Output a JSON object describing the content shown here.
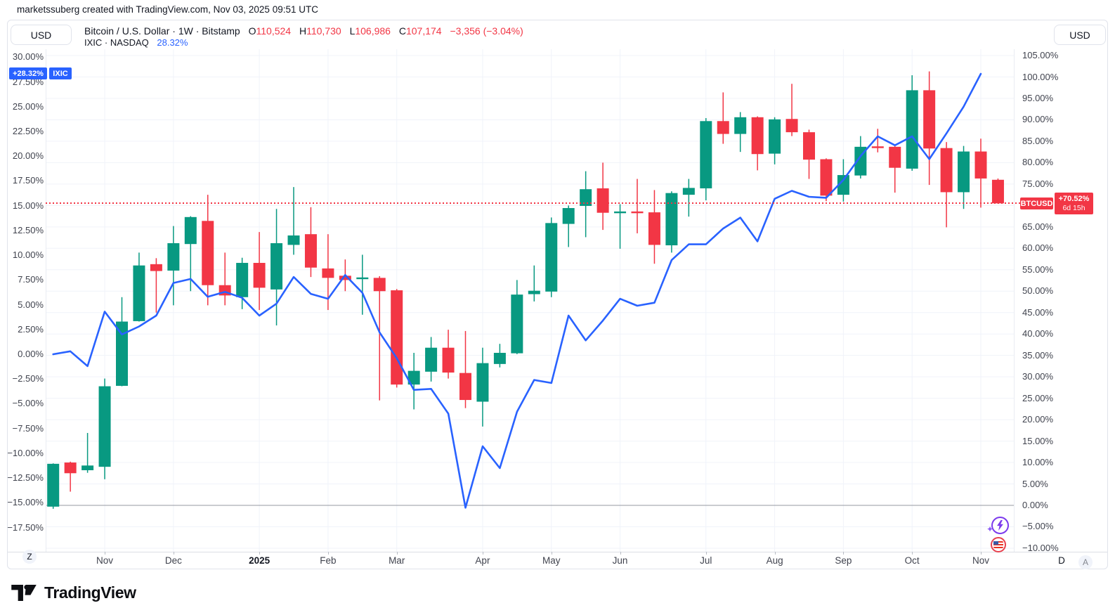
{
  "attribution": "marketssuberg created with TradingView.com, Nov 03, 2025 09:51 UTC",
  "legend": {
    "currency_button": "USD",
    "symbol_title": "Bitcoin / U.S. Dollar · 1W · Bitstamp",
    "o_label": "O",
    "o_value": "110,524",
    "h_label": "H",
    "h_value": "110,730",
    "l_label": "L",
    "l_value": "106,986",
    "c_label": "C",
    "c_value": "107,174",
    "change": "−3,356 (−3.04%)",
    "compare_symbol": "IXIC · NASDAQ",
    "compare_value": "28.32%"
  },
  "right_currency_button": "USD",
  "badges": {
    "ixic_value": "+28.32%",
    "ixic_name": "IXIC",
    "btc_name": "BTCUSD",
    "btc_value": "+70.52%",
    "btc_countdown": "6d 15h"
  },
  "axes": {
    "left_ticks": [
      {
        "label": "30.00%",
        "value": 30
      },
      {
        "label": "27.50%",
        "value": 27.5
      },
      {
        "label": "25.00%",
        "value": 25
      },
      {
        "label": "22.50%",
        "value": 22.5
      },
      {
        "label": "20.00%",
        "value": 20
      },
      {
        "label": "17.50%",
        "value": 17.5
      },
      {
        "label": "15.00%",
        "value": 15
      },
      {
        "label": "12.50%",
        "value": 12.5
      },
      {
        "label": "10.00%",
        "value": 10
      },
      {
        "label": "7.50%",
        "value": 7.5
      },
      {
        "label": "5.00%",
        "value": 5
      },
      {
        "label": "2.50%",
        "value": 2.5
      },
      {
        "label": "0.00%",
        "value": 0
      },
      {
        "label": "−2.50%",
        "value": -2.5
      },
      {
        "label": "−5.00%",
        "value": -5
      },
      {
        "label": "−7.50%",
        "value": -7.5
      },
      {
        "label": "−10.00%",
        "value": -10
      },
      {
        "label": "−12.50%",
        "value": -12.5
      },
      {
        "label": "−15.00%",
        "value": -15
      },
      {
        "label": "−17.50%",
        "value": -17.5
      }
    ],
    "right_ticks": [
      {
        "label": "105.00%",
        "value": 105
      },
      {
        "label": "100.00%",
        "value": 100
      },
      {
        "label": "95.00%",
        "value": 95
      },
      {
        "label": "90.00%",
        "value": 90
      },
      {
        "label": "85.00%",
        "value": 85
      },
      {
        "label": "80.00%",
        "value": 80
      },
      {
        "label": "75.00%",
        "value": 75
      },
      {
        "label": "65.00%",
        "value": 65
      },
      {
        "label": "60.00%",
        "value": 60
      },
      {
        "label": "55.00%",
        "value": 55
      },
      {
        "label": "50.00%",
        "value": 50
      },
      {
        "label": "45.00%",
        "value": 45
      },
      {
        "label": "40.00%",
        "value": 40
      },
      {
        "label": "35.00%",
        "value": 35
      },
      {
        "label": "30.00%",
        "value": 30
      },
      {
        "label": "25.00%",
        "value": 25
      },
      {
        "label": "20.00%",
        "value": 20
      },
      {
        "label": "15.00%",
        "value": 15
      },
      {
        "label": "10.00%",
        "value": 10
      },
      {
        "label": "5.00%",
        "value": 5
      },
      {
        "label": "0.00%",
        "value": 0
      },
      {
        "label": "−5.00%",
        "value": -5
      },
      {
        "label": "−10.00%",
        "value": -10
      }
    ],
    "months": [
      {
        "label": "Nov",
        "week": 3
      },
      {
        "label": "Dec",
        "week": 7
      },
      {
        "label": "2025",
        "week": 12,
        "bold": true
      },
      {
        "label": "Feb",
        "week": 16
      },
      {
        "label": "Mar",
        "week": 20
      },
      {
        "label": "Apr",
        "week": 25
      },
      {
        "label": "May",
        "week": 29
      },
      {
        "label": "Jun",
        "week": 33
      },
      {
        "label": "Jul",
        "week": 38
      },
      {
        "label": "Aug",
        "week": 42
      },
      {
        "label": "Sep",
        "week": 46
      },
      {
        "label": "Oct",
        "week": 50
      },
      {
        "label": "Nov",
        "week": 54
      }
    ],
    "d_label": "D",
    "a_button": "A",
    "z_button": "Z"
  },
  "logo_text": "TradingView",
  "chart_data": {
    "type": "candlestick_with_overlay_line",
    "title": "Bitcoin / U.S. Dollar · 1W · Bitstamp vs IXIC · NASDAQ (percent change)",
    "interval": "1W",
    "weeks": 56,
    "right_axis": {
      "label": "BTCUSD % change",
      "ylim": [
        -10,
        105
      ],
      "grid_step": 5
    },
    "left_axis": {
      "label": "IXIC % change",
      "ylim": [
        -17.5,
        30
      ],
      "grid_step": 2.5
    },
    "baseline_value": 0,
    "btc_last_value": 70.52,
    "ixic_last_value": 28.32,
    "colors": {
      "up": "#089981",
      "down": "#F23645",
      "line": "#2962FF",
      "last_price": "#F23645",
      "grid": "#F0F3FA",
      "baseline": "#9598A1"
    },
    "candles_ohlc_pct": [
      [
        -0.3,
        9.8,
        -0.8,
        9.7
      ],
      [
        10,
        10.2,
        3.2,
        7.5
      ],
      [
        8.2,
        16.9,
        7.6,
        9.3
      ],
      [
        9,
        29.6,
        6.1,
        27.8
      ],
      [
        27.9,
        48.6,
        27.8,
        42.9
      ],
      [
        43,
        59,
        42.9,
        56
      ],
      [
        56.3,
        57.7,
        45,
        54.7
      ],
      [
        54.8,
        65.2,
        46.7,
        61.2
      ],
      [
        61,
        67.5,
        50,
        67.3
      ],
      [
        66.4,
        72.5,
        46.7,
        51.4
      ],
      [
        51.4,
        59,
        46.7,
        49
      ],
      [
        48.6,
        57.8,
        45.8,
        56.6
      ],
      [
        56.6,
        63.8,
        45.6,
        50.8
      ],
      [
        50.4,
        69.2,
        42,
        61.2
      ],
      [
        60.8,
        74.3,
        58.5,
        63
      ],
      [
        63.3,
        69.6,
        53.3,
        55.5
      ],
      [
        55.3,
        63.3,
        45.6,
        53.1
      ],
      [
        53.6,
        57.4,
        50,
        52.6
      ],
      [
        52.8,
        58.5,
        44.5,
        53.2
      ],
      [
        53.1,
        53.5,
        24.5,
        50
      ],
      [
        50.2,
        50.5,
        27.5,
        28.2
      ],
      [
        28.2,
        35.6,
        22.4,
        31.4
      ],
      [
        31.2,
        39.3,
        28.9,
        36.8
      ],
      [
        36.8,
        41,
        29.6,
        31
      ],
      [
        30.9,
        40.7,
        22.7,
        24.6
      ],
      [
        24.2,
        36.8,
        18.4,
        33.2
      ],
      [
        33,
        37.7,
        32.2,
        35.6
      ],
      [
        35.5,
        52.6,
        35.3,
        49.2
      ],
      [
        49.3,
        56,
        47.6,
        50.1
      ],
      [
        49.9,
        67.2,
        48.6,
        65.9
      ],
      [
        65.7,
        70,
        60.3,
        69.4
      ],
      [
        69.9,
        78,
        62.6,
        73.8
      ],
      [
        74,
        80,
        64.3,
        68.3
      ],
      [
        68.2,
        70.3,
        59.9,
        68.6
      ],
      [
        68.6,
        76.2,
        63.5,
        68.2
      ],
      [
        68.4,
        73.6,
        56.4,
        60.8
      ],
      [
        60.7,
        73.3,
        59,
        72.9
      ],
      [
        72.5,
        76.2,
        67.4,
        74.1
      ],
      [
        74,
        90.4,
        71.2,
        89.7
      ],
      [
        89.7,
        96.4,
        84.4,
        86.7
      ],
      [
        86.7,
        91.8,
        82.5,
        90.6
      ],
      [
        90.6,
        90.8,
        78.2,
        82
      ],
      [
        82.1,
        90.6,
        79.6,
        90.1
      ],
      [
        90.2,
        98.4,
        86.2,
        87.1
      ],
      [
        87.1,
        87.7,
        76.2,
        80.7
      ],
      [
        80.8,
        81,
        71,
        72.3
      ],
      [
        72.5,
        80.8,
        70.9,
        77.1
      ],
      [
        77,
        86.2,
        76.3,
        83.7
      ],
      [
        83.8,
        87.9,
        82.4,
        83.4
      ],
      [
        83.7,
        83.9,
        73,
        78.8
      ],
      [
        78.6,
        100.4,
        78.1,
        96.9
      ],
      [
        96.9,
        101.3,
        74.8,
        83.3
      ],
      [
        83.4,
        84.8,
        64.9,
        73.1
      ],
      [
        73.1,
        83.9,
        69.2,
        82.6
      ],
      [
        82.6,
        85.6,
        69.5,
        76.3
      ],
      [
        76,
        76.3,
        70.4,
        70.5
      ]
    ],
    "line_series": {
      "name": "IXIC",
      "values_pct": [
        0,
        0.3,
        -1.2,
        4.3,
        2,
        2.8,
        3.9,
        7.2,
        7.6,
        5.8,
        6.3,
        5.7,
        3.9,
        5.1,
        7.8,
        6.1,
        5.6,
        8,
        6.2,
        2.2,
        -0.4,
        -3.6,
        -3.5,
        -6,
        -15.5,
        -9.3,
        -11.5,
        -5.8,
        -2.6,
        -2.9,
        3.9,
        1.4,
        3.4,
        5.6,
        4.9,
        5.2,
        9.5,
        11.1,
        11.1,
        12.7,
        13.8,
        11.4,
        15.7,
        16.5,
        15.9,
        15.8,
        17.6,
        20,
        22,
        21.1,
        22,
        19.7,
        22.3,
        25,
        28.32
      ]
    }
  }
}
